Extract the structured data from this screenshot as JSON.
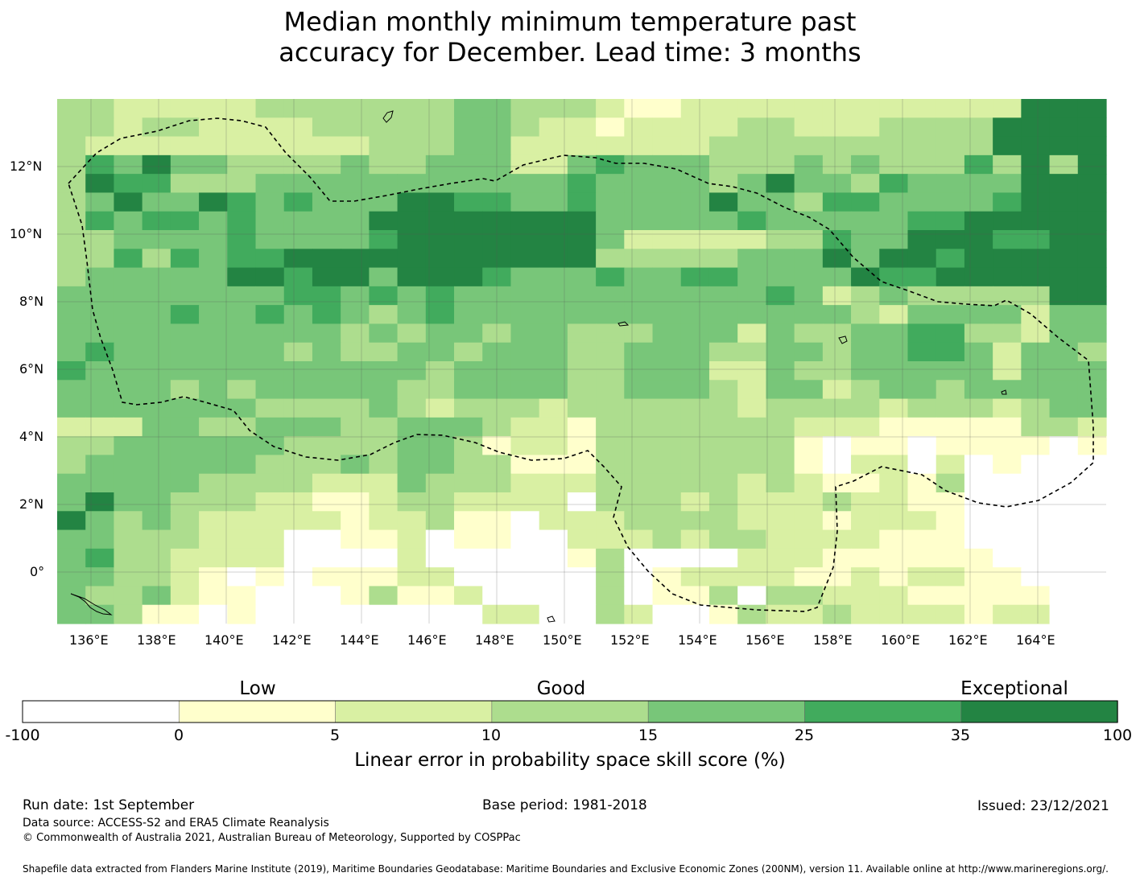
{
  "title_line1": "Median monthly minimum temperature past",
  "title_line2": "accuracy for December. Lead time: 3 months",
  "map": {
    "lon_range": [
      135,
      166
    ],
    "lat_range": [
      -1.5,
      14
    ],
    "lon_ticks": [
      "136°E",
      "138°E",
      "140°E",
      "142°E",
      "144°E",
      "146°E",
      "148°E",
      "150°E",
      "152°E",
      "154°E",
      "156°E",
      "158°E",
      "160°E",
      "162°E",
      "164°E"
    ],
    "lat_ticks": [
      "12°N",
      "10°N",
      "8°N",
      "6°N",
      "4°N",
      "2°N",
      "0°"
    ],
    "grid": true
  },
  "colorbar": {
    "categories": [
      "Low",
      "Good",
      "Exceptional"
    ],
    "ticks": [
      "-100",
      "0",
      "5",
      "10",
      "15",
      "25",
      "35",
      "100"
    ],
    "colors": [
      "#ffffff",
      "#ffffcc",
      "#d9f0a3",
      "#addd8e",
      "#78c679",
      "#41ab5d",
      "#238443"
    ],
    "label": "Linear error in probability space skill score (%)"
  },
  "footer": {
    "run_date": "Run date: 1st September",
    "base_period": "Base period: 1981-2018",
    "issued": "Issued: 23/12/2021",
    "data_source": "Data source: ACCESS-S2 and ERA5 Climate Reanalysis",
    "copyright": "© Commonwealth of Australia 2021, Australian Bureau of Meteorology, Supported by COSPPac",
    "shapefile": "Shapefile data extracted from Flanders Marine Institute (2019), Maritime Boundaries Geodatabase: Maritime Boundaries and Exclusive Economic Zones (200NM), version 11. Available online at http://www.marineregions.org/."
  }
}
